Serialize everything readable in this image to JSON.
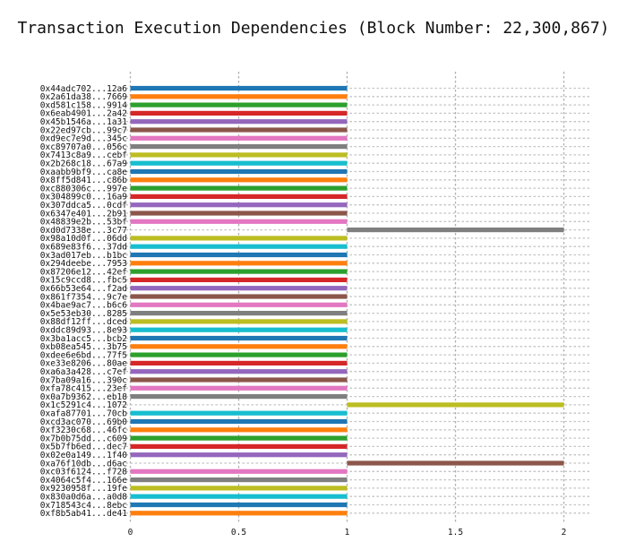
{
  "chart_data": {
    "type": "bar",
    "orientation": "horizontal",
    "title": "Transaction Execution Dependencies (Block Number: 22,300,867)",
    "xlabel": "",
    "ylabel": "",
    "xlim": [
      0,
      2.1
    ],
    "xticks": [
      0,
      0.5,
      1,
      1.5,
      2
    ],
    "xtick_labels": [
      "0",
      "0.5",
      "1",
      "1.5",
      "2"
    ],
    "grid": true,
    "categories": [
      "0x44adc702...12a6",
      "0x2a61da38...7669",
      "0xd581c158...9914",
      "0x6eab4901...2a42",
      "0x45b1546a...1a31",
      "0x22ed97cb...99c7",
      "0xd9ec7e9d...345c",
      "0xc89707a0...056c",
      "0x7413c8a9...cebf",
      "0x2b268c18...67a9",
      "0xaabb9bf9...ca8e",
      "0x8ff5d841...c86b",
      "0xc880306c...997e",
      "0x304899c0...16a9",
      "0x307ddca5...0cdf",
      "0x6347e401...2b91",
      "0x48839e2b...53bf",
      "0xd0d7338e...3c77",
      "0x98a10d0f...06dd",
      "0x689e83f6...37dd",
      "0x3ad017eb...b1bc",
      "0x294deebe...7953",
      "0x87206e12...42ef",
      "0x15c9ccd8...fbc5",
      "0x66b53e64...f2ad",
      "0x861f7354...9c7e",
      "0x4bae9ac7...b6c6",
      "0x5e53eb30...8285",
      "0x88df12ff...dced",
      "0xddc89d93...8e93",
      "0x3ba1acc5...bcb2",
      "0xb08ea545...3b75",
      "0xdee6e6bd...77f5",
      "0xe33e8206...80ae",
      "0xa6a3a428...c7ef",
      "0x7ba09a16...390c",
      "0xfa78c415...23ef",
      "0x0a7b9362...eb18",
      "0x1c5291c4...1072",
      "0xafa87701...70cb",
      "0xcd3ac070...69b0",
      "0xf3230c68...46fc",
      "0x7b0b75dd...c609",
      "0x5b7fb6ed...dec7",
      "0x02e0a149...1f40",
      "0xa76f10db...d6ac",
      "0xc03f6124...f728",
      "0x4064c5f4...166e",
      "0x9230958f...19fe",
      "0x830a0d6a...a0d8",
      "0x718543c4...8ebc",
      "0xf8b5ab41...de41"
    ],
    "values": [
      1,
      1,
      1,
      1,
      1,
      1,
      1,
      1,
      1,
      1,
      1,
      1,
      1,
      1,
      1,
      1,
      1,
      2,
      1,
      1,
      1,
      1,
      1,
      1,
      1,
      1,
      1,
      1,
      1,
      1,
      1,
      1,
      1,
      1,
      1,
      1,
      1,
      1,
      2,
      1,
      1,
      1,
      1,
      1,
      1,
      2,
      1,
      1,
      1,
      1,
      1,
      1
    ],
    "starts": [
      0,
      0,
      0,
      0,
      0,
      0,
      0,
      0,
      0,
      0,
      0,
      0,
      0,
      0,
      0,
      0,
      0,
      1,
      0,
      0,
      0,
      0,
      0,
      0,
      0,
      0,
      0,
      0,
      0,
      0,
      0,
      0,
      0,
      0,
      0,
      0,
      0,
      0,
      1,
      0,
      0,
      0,
      0,
      0,
      0,
      1,
      0,
      0,
      0,
      0,
      0,
      0
    ],
    "colors": [
      "#1f77b4",
      "#ff7f0e",
      "#2ca02c",
      "#d62728",
      "#9467bd",
      "#8c564b",
      "#e377c2",
      "#7f7f7f",
      "#bcbd22",
      "#17becf"
    ]
  }
}
